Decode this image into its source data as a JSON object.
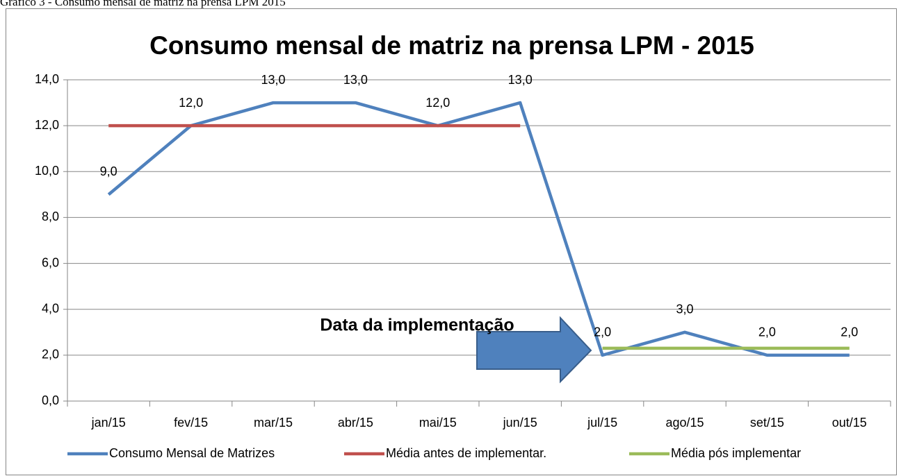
{
  "caption": "Gráfico 3 - Consumo mensal de matriz na prensa LPM 2015",
  "chart_data": {
    "type": "line",
    "title": "Consumo mensal de matriz na prensa LPM - 2015",
    "categories": [
      "jan/15",
      "fev/15",
      "mar/15",
      "abr/15",
      "mai/15",
      "jun/15",
      "jul/15",
      "ago/15",
      "set/15",
      "out/15"
    ],
    "series": [
      {
        "name": "Consumo Mensal de Matrizes",
        "color": "#4f81bd",
        "values": [
          9,
          12,
          13,
          13,
          12,
          13,
          2,
          3,
          2,
          2
        ],
        "value_labels": [
          "9,0",
          "12,0",
          "13,0",
          "13,0",
          "12,0",
          "13,0",
          "2,0",
          "3,0",
          "2,0",
          "2,0"
        ]
      },
      {
        "name": "Média antes de implementar.",
        "color": "#c0504d",
        "values": [
          12,
          12,
          12,
          12,
          12,
          12,
          null,
          null,
          null,
          null
        ]
      },
      {
        "name": "Média pós implementar",
        "color": "#9bbb59",
        "values": [
          null,
          null,
          null,
          null,
          null,
          null,
          2.3,
          2.3,
          2.3,
          2.3
        ]
      }
    ],
    "ylim": [
      0,
      14
    ],
    "yticks": [
      {
        "value": 0,
        "label": "0,0"
      },
      {
        "value": 2,
        "label": "2,0"
      },
      {
        "value": 4,
        "label": "4,0"
      },
      {
        "value": 6,
        "label": "6,0"
      },
      {
        "value": 8,
        "label": "8,0"
      },
      {
        "value": 10,
        "label": "10,0"
      },
      {
        "value": 12,
        "label": "12,0"
      },
      {
        "value": 14,
        "label": "14,0"
      }
    ],
    "grid": true,
    "legend": "bottom",
    "annotation": "Data da implementação"
  }
}
